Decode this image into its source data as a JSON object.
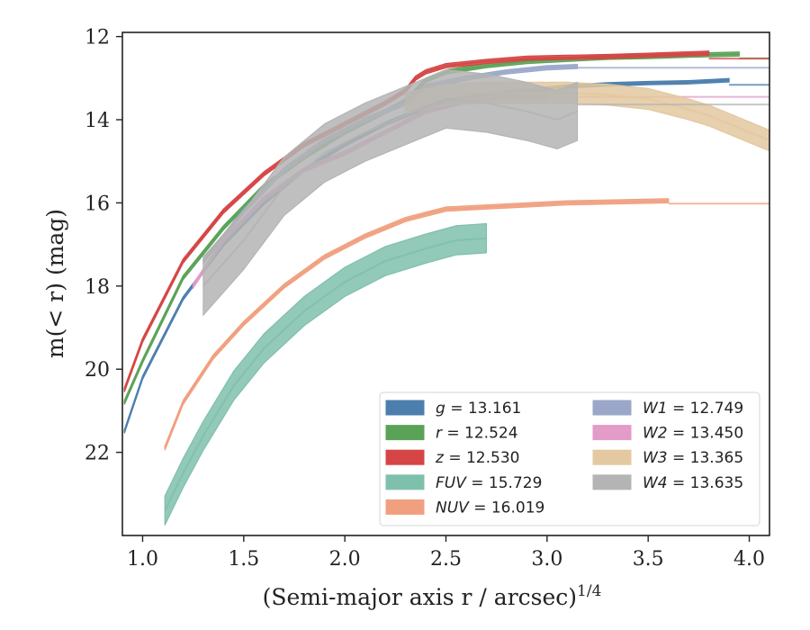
{
  "chart_data": {
    "type": "line",
    "xlabel": "(Semi-major axis r / arcsec)1/4",
    "ylabel": "m(< r) (mag)",
    "xlim": [
      0.9,
      4.1
    ],
    "ylim": [
      24.0,
      11.9
    ],
    "y_inverted": true,
    "x_ticks": [
      "1.0",
      "1.5",
      "2.0",
      "2.5",
      "3.0",
      "3.5",
      "4.0"
    ],
    "y_ticks": [
      "12",
      "14",
      "16",
      "18",
      "20",
      "22"
    ],
    "grid": false,
    "legend_position": "lower-right",
    "series": [
      {
        "name": "g = 13.161",
        "label": "g",
        "total": "13.161",
        "color": "#4c7fae",
        "band": 0.04,
        "x": [
          0.91,
          1.0,
          1.2,
          1.4,
          1.6,
          1.8,
          2.0,
          2.2,
          2.4,
          2.5,
          2.7,
          2.9,
          3.1,
          3.3,
          3.5,
          3.7,
          3.9
        ],
        "y": [
          21.5,
          20.2,
          18.3,
          17.0,
          16.0,
          15.2,
          14.6,
          14.1,
          13.7,
          13.55,
          13.4,
          13.3,
          13.2,
          13.15,
          13.12,
          13.1,
          13.05
        ],
        "asymptote": 13.161
      },
      {
        "name": "r = 12.524",
        "label": "r",
        "total": "12.524",
        "color": "#5aa356",
        "band": 0.05,
        "x": [
          0.91,
          1.0,
          1.2,
          1.4,
          1.6,
          1.8,
          2.0,
          2.2,
          2.3,
          2.35,
          2.4,
          2.5,
          2.7,
          2.9,
          3.1,
          3.3,
          3.5,
          3.7,
          3.95
        ],
        "y": [
          20.8,
          19.8,
          17.8,
          16.6,
          15.6,
          14.9,
          14.3,
          13.8,
          13.55,
          13.3,
          13.05,
          12.85,
          12.7,
          12.6,
          12.55,
          12.5,
          12.48,
          12.45,
          12.42
        ],
        "asymptote": 12.524
      },
      {
        "name": "z = 12.530",
        "label": "z",
        "total": "12.530",
        "color": "#d64545",
        "band": 0.05,
        "x": [
          0.91,
          1.0,
          1.2,
          1.4,
          1.6,
          1.8,
          2.0,
          2.2,
          2.3,
          2.35,
          2.4,
          2.5,
          2.7,
          2.9,
          3.1,
          3.3,
          3.5,
          3.8
        ],
        "y": [
          20.5,
          19.3,
          17.4,
          16.2,
          15.3,
          14.6,
          14.1,
          13.6,
          13.3,
          13.0,
          12.85,
          12.7,
          12.6,
          12.52,
          12.5,
          12.48,
          12.45,
          12.4
        ],
        "asymptote": 12.53
      },
      {
        "name": "FUV = 15.729",
        "label": "FUV",
        "total": "15.729",
        "color": "#7fc0ad",
        "band": 0.35,
        "x": [
          1.11,
          1.2,
          1.3,
          1.45,
          1.6,
          1.8,
          2.0,
          2.2,
          2.4,
          2.55,
          2.7
        ],
        "y": [
          23.4,
          22.5,
          21.6,
          20.4,
          19.5,
          18.6,
          17.9,
          17.4,
          17.1,
          16.9,
          16.85
        ],
        "asymptote": null
      },
      {
        "name": "NUV = 16.019",
        "label": "NUV",
        "total": "16.019",
        "color": "#f0a07f",
        "band": 0.05,
        "x": [
          1.11,
          1.2,
          1.35,
          1.5,
          1.7,
          1.9,
          2.1,
          2.3,
          2.5,
          2.7,
          2.9,
          3.1,
          3.3,
          3.6
        ],
        "y": [
          21.9,
          20.8,
          19.7,
          18.9,
          18.0,
          17.3,
          16.8,
          16.4,
          16.15,
          16.1,
          16.05,
          16.0,
          15.98,
          15.95
        ],
        "asymptote": 16.019
      },
      {
        "name": "W1 = 12.749",
        "label": "W1",
        "total": "12.749",
        "color": "#9aa7c9",
        "band": 0.05,
        "x": [
          1.3,
          1.5,
          1.7,
          1.9,
          2.1,
          2.3,
          2.4,
          2.6,
          2.8,
          3.0,
          3.15
        ],
        "y": [
          17.4,
          16.2,
          15.2,
          14.5,
          14.0,
          13.6,
          13.2,
          13.0,
          12.85,
          12.75,
          12.72
        ],
        "asymptote": 12.749
      },
      {
        "name": "W2 = 13.450",
        "label": "W2",
        "total": "13.450",
        "color": "#e39bc7",
        "band": 0.05,
        "x": [
          1.25,
          1.4,
          1.6,
          1.8,
          2.0,
          2.2,
          2.4,
          2.6,
          2.8,
          3.0
        ],
        "y": [
          18.0,
          16.9,
          15.9,
          15.2,
          14.8,
          14.3,
          13.8,
          13.55,
          13.45,
          13.45
        ],
        "asymptote": 13.45
      },
      {
        "name": "W3 = 13.365",
        "label": "W3",
        "total": "13.365",
        "color": "#e3c8a0",
        "band": 0.25,
        "x": [
          2.3,
          2.5,
          2.7,
          2.9,
          3.1,
          3.3,
          3.5,
          3.7,
          3.8,
          3.9,
          4.0,
          4.1
        ],
        "y": [
          13.6,
          13.4,
          13.35,
          13.35,
          13.35,
          13.4,
          13.5,
          13.75,
          13.9,
          14.1,
          14.3,
          14.5
        ],
        "asymptote": 13.365
      },
      {
        "name": "W4 = 13.635",
        "label": "W4",
        "total": "13.635",
        "color": "#b4b4b4",
        "band": 0.7,
        "x": [
          1.3,
          1.5,
          1.7,
          1.9,
          2.1,
          2.3,
          2.5,
          2.7,
          2.9,
          3.05,
          3.15
        ],
        "y": [
          18.0,
          16.9,
          15.6,
          14.8,
          14.3,
          13.9,
          13.5,
          13.6,
          13.8,
          14.0,
          13.8
        ],
        "asymptote": 13.635
      }
    ]
  }
}
